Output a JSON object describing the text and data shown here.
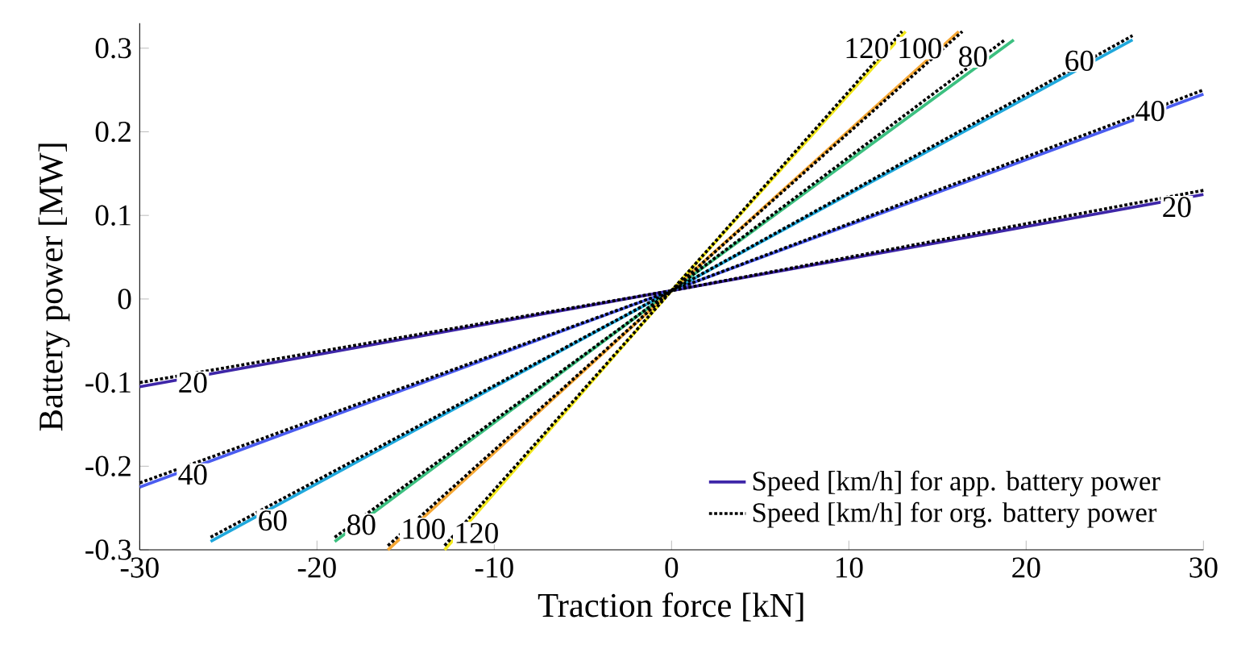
{
  "chart_data": {
    "type": "line",
    "xlabel": "Traction force [kN]",
    "ylabel": "Battery power [MW]",
    "xlim": [
      -30,
      30
    ],
    "ylim": [
      -0.3,
      0.33
    ],
    "xticks": [
      -30,
      -20,
      -10,
      0,
      10,
      20,
      30
    ],
    "yticks": [
      -0.3,
      -0.2,
      -0.1,
      0,
      0.1,
      0.2,
      0.3
    ],
    "grid": false,
    "legend": "bottom right",
    "series": [
      {
        "name": "Speed [km/h] for app. battery power",
        "color": "#3e26a8",
        "line_style": "solid",
        "x": [
          -30,
          0,
          30
        ],
        "values": [
          -0.105,
          0.01,
          0.125
        ]
      },
      {
        "color": "#4a5cf0",
        "line_style": "solid",
        "x": [
          -30,
          0,
          30
        ],
        "values": [
          -0.225,
          0.01,
          0.245
        ]
      },
      {
        "color": "#1fa8dc",
        "line_style": "solid",
        "x": [
          -26,
          0,
          26
        ],
        "values": [
          -0.29,
          0.01,
          0.31
        ]
      },
      {
        "color": "#3cc080",
        "line_style": "solid",
        "x": [
          -19,
          0,
          19.3
        ],
        "values": [
          -0.29,
          0.01,
          0.31
        ]
      },
      {
        "color": "#f5a836",
        "line_style": "solid",
        "x": [
          -16,
          0,
          16.2
        ],
        "values": [
          -0.3,
          0.01,
          0.32
        ]
      },
      {
        "color": "#f2e81e",
        "line_style": "solid",
        "x": [
          -12.8,
          0,
          13.2
        ],
        "values": [
          -0.3,
          0.01,
          0.32
        ]
      },
      {
        "name": "Speed [km/h] for org. battery power",
        "color": "#000000",
        "line_style": "dotted",
        "x": [
          -30,
          0,
          30
        ],
        "values": [
          -0.1,
          0.01,
          0.13
        ]
      },
      {
        "color": "#000000",
        "line_style": "dotted",
        "x": [
          -30,
          0,
          30
        ],
        "values": [
          -0.22,
          0.01,
          0.25
        ]
      },
      {
        "color": "#000000",
        "line_style": "dotted",
        "x": [
          -26,
          0,
          26
        ],
        "values": [
          -0.285,
          0.01,
          0.315
        ]
      },
      {
        "color": "#000000",
        "line_style": "dotted",
        "x": [
          -19,
          0,
          18.8
        ],
        "values": [
          -0.285,
          0.01,
          0.31
        ]
      },
      {
        "color": "#000000",
        "line_style": "dotted",
        "x": [
          -16,
          0,
          16.4
        ],
        "values": [
          -0.295,
          0.01,
          0.32
        ]
      },
      {
        "color": "#000000",
        "line_style": "dotted",
        "x": [
          -12.8,
          0,
          13
        ],
        "values": [
          -0.295,
          0.01,
          0.32
        ]
      }
    ],
    "annotations": [
      {
        "text": "20",
        "x": -27,
        "y": -0.1
      },
      {
        "text": "20",
        "x": 28.5,
        "y": 0.11
      },
      {
        "text": "40",
        "x": -27,
        "y": -0.21
      },
      {
        "text": "40",
        "x": 27,
        "y": 0.225
      },
      {
        "text": "60",
        "x": -22.5,
        "y": -0.265
      },
      {
        "text": "60",
        "x": 23,
        "y": 0.285
      },
      {
        "text": "80",
        "x": -17.5,
        "y": -0.27
      },
      {
        "text": "80",
        "x": 17,
        "y": 0.29
      },
      {
        "text": "100",
        "x": -14,
        "y": -0.275
      },
      {
        "text": "100",
        "x": 14,
        "y": 0.3
      },
      {
        "text": "120",
        "x": -11,
        "y": -0.28
      },
      {
        "text": "120",
        "x": 11,
        "y": 0.3
      }
    ]
  }
}
